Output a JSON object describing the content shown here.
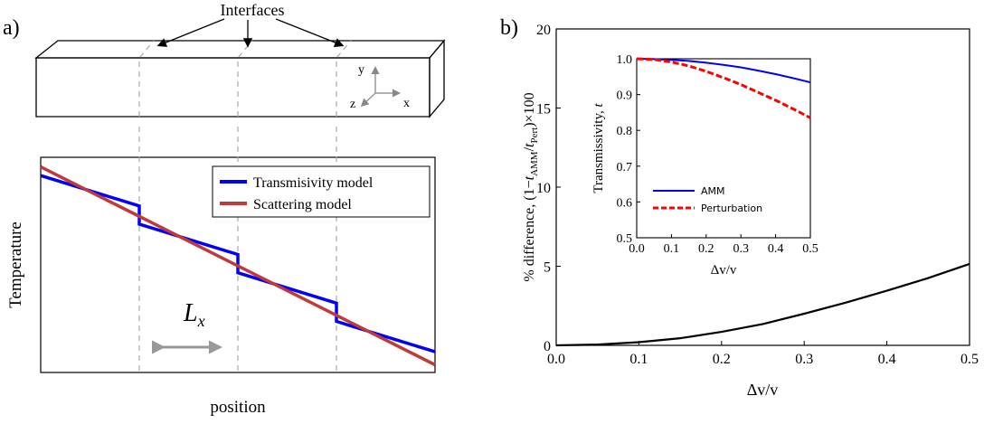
{
  "panel_a": {
    "label": "a)",
    "interfaces_label": "Interfaces",
    "axes": {
      "x": "x",
      "y": "y",
      "z": "z"
    },
    "ylabel": "Temperature",
    "xlabel": "position",
    "period_label": "L",
    "period_subscript": "x",
    "legend": [
      "Transmisivity model",
      "Scattering model"
    ]
  },
  "panel_b": {
    "label": "b)",
    "inset_legend": [
      "AMM",
      "Perturbation"
    ]
  },
  "chart_data": [
    {
      "type": "line",
      "title": "",
      "xlabel": "position",
      "ylabel": "Temperature",
      "series": [
        {
          "name": "Transmisivity model",
          "color": "#0000ff",
          "x": [
            0,
            1,
            1,
            2,
            2,
            3,
            3,
            4
          ],
          "y": [
            0.905,
            0.747,
            0.652,
            0.494,
            0.399,
            0.241,
            0.146,
            -0.012
          ]
        },
        {
          "name": "Scattering model",
          "color": "#bf3a3a",
          "x": [
            0,
            4
          ],
          "y": [
            0.95,
            -0.08
          ]
        }
      ],
      "interfaces_x": [
        1,
        2,
        3
      ],
      "xlim": [
        0,
        4
      ],
      "ylim": [
        -0.12,
        1.0
      ]
    },
    {
      "type": "line",
      "title": "",
      "xlabel": "Δv/v",
      "ylabel": "% difference, (1−t_AMM/t_Pert)×100",
      "xlim": [
        0,
        0.5
      ],
      "ylim": [
        0,
        20
      ],
      "xticks": [
        "0.0",
        "0.1",
        "0.2",
        "0.3",
        "0.4",
        "0.5"
      ],
      "yticks": [
        "0",
        "5",
        "10",
        "15",
        "20"
      ],
      "series": [
        {
          "name": "",
          "color": "#000000",
          "x": [
            0,
            0.05,
            0.1,
            0.15,
            0.2,
            0.25,
            0.3,
            0.35,
            0.4,
            0.45,
            0.5
          ],
          "y": [
            0,
            0.05,
            0.2,
            0.45,
            0.85,
            1.35,
            2.0,
            2.7,
            3.45,
            4.25,
            5.15
          ]
        }
      ]
    },
    {
      "type": "line",
      "title": "",
      "xlabel": "Δv/v",
      "ylabel": "Transmissivity, t",
      "xlim": [
        0,
        0.5
      ],
      "ylim": [
        0.5,
        1.0
      ],
      "xticks": [
        "0.0",
        "0.1",
        "0.2",
        "0.3",
        "0.4",
        "0.5"
      ],
      "yticks": [
        "0.5",
        "0.6",
        "0.7",
        "0.8",
        "0.9",
        "1.0"
      ],
      "legend_position": "bottom-left",
      "series": [
        {
          "name": "AMM",
          "color": "#0000ff",
          "style": "solid",
          "x": [
            0,
            0.05,
            0.1,
            0.15,
            0.2,
            0.25,
            0.3,
            0.35,
            0.4,
            0.45,
            0.5
          ],
          "y": [
            1.0,
            0.999,
            0.997,
            0.994,
            0.989,
            0.983,
            0.976,
            0.967,
            0.957,
            0.946,
            0.934
          ]
        },
        {
          "name": "Perturbation",
          "color": "#ff0000",
          "style": "dashed",
          "x": [
            0,
            0.05,
            0.1,
            0.15,
            0.2,
            0.25,
            0.3,
            0.35,
            0.4,
            0.45,
            0.5
          ],
          "y": [
            1.0,
            0.998,
            0.991,
            0.98,
            0.965,
            0.947,
            0.928,
            0.906,
            0.884,
            0.86,
            0.835
          ]
        }
      ]
    }
  ]
}
